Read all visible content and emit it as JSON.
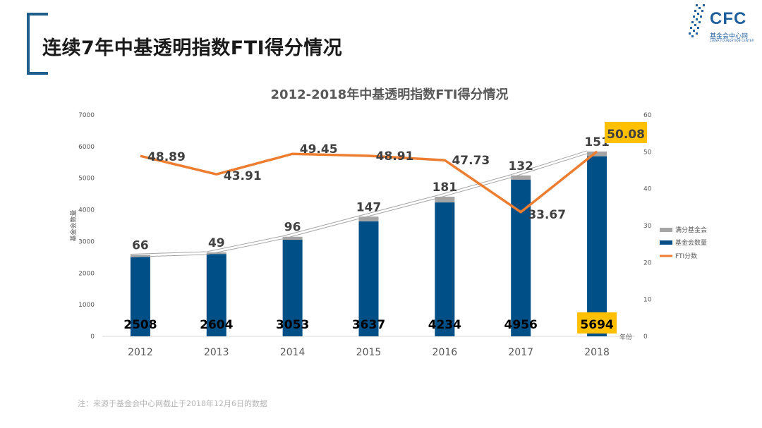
{
  "page": {
    "title": "连续7年中基透明指数FTI得分情况",
    "footnote": "注：来源于基金会中心网截止于2018年12月6日的数据"
  },
  "logo": {
    "name": "CFC",
    "subtitle": "基金会中心网",
    "subtitle_en": "CHINA FOUNDATION CENTER",
    "color": "#1f5f9e"
  },
  "chart_data": {
    "type": "bar",
    "title": "2012-2018年中基透明指数FTI得分情况",
    "categories": [
      "2012",
      "2013",
      "2014",
      "2015",
      "2016",
      "2017",
      "2018"
    ],
    "xlabel": "年份",
    "ylabel": "基金会数量",
    "ylim": [
      0,
      7000
    ],
    "y2lim": [
      0,
      60
    ],
    "yticks": [
      "0",
      "1000",
      "2000",
      "3000",
      "4000",
      "5000",
      "6000",
      "7000"
    ],
    "y2ticks": [
      "0",
      "10",
      "20",
      "30",
      "40",
      "50",
      "60"
    ],
    "series": [
      {
        "name": "基金会数量",
        "kind": "bar",
        "color": "#004f86",
        "values": [
          2508,
          2604,
          3053,
          3637,
          4234,
          4956,
          5694
        ],
        "labels": [
          "2508",
          "2604",
          "3053",
          "3637",
          "4234",
          "4956",
          "5694"
        ]
      },
      {
        "name": "满分基金会",
        "kind": "bar-stacked",
        "color": "#a5a5a5",
        "values": [
          66,
          49,
          96,
          147,
          181,
          132,
          151
        ],
        "labels": [
          "66",
          "49",
          "96",
          "147",
          "181",
          "132",
          "151"
        ]
      },
      {
        "name": "FTI分数",
        "kind": "line",
        "axis": "right",
        "color": "#ed7d31",
        "values": [
          48.89,
          43.91,
          49.45,
          48.91,
          47.73,
          33.67,
          50.08
        ],
        "labels": [
          "48.89",
          "43.91",
          "49.45",
          "48.91",
          "47.73",
          "33.67",
          "50.08"
        ]
      }
    ],
    "highlight_color": "#ffc000",
    "highlight_labels": [
      "5694",
      "50.08"
    ],
    "legend": "right"
  }
}
